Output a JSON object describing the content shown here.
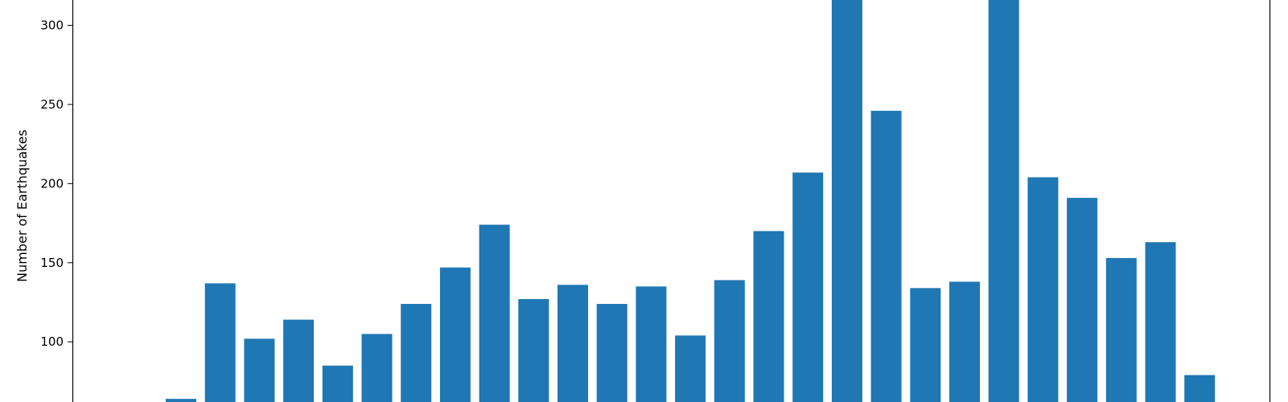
{
  "chart_data": {
    "type": "bar",
    "title": "",
    "xlabel": "",
    "ylabel": "Number of Earthquakes",
    "ylim": [
      62,
      316
    ],
    "yticks": [
      100,
      150,
      200,
      250,
      300
    ],
    "grid": false,
    "bar_color": "#1f77b4",
    "values": [
      64,
      137,
      102,
      114,
      85,
      105,
      124,
      147,
      174,
      127,
      136,
      124,
      135,
      104,
      139,
      170,
      207,
      316,
      246,
      134,
      138,
      316,
      204,
      191,
      153,
      163,
      79
    ]
  }
}
